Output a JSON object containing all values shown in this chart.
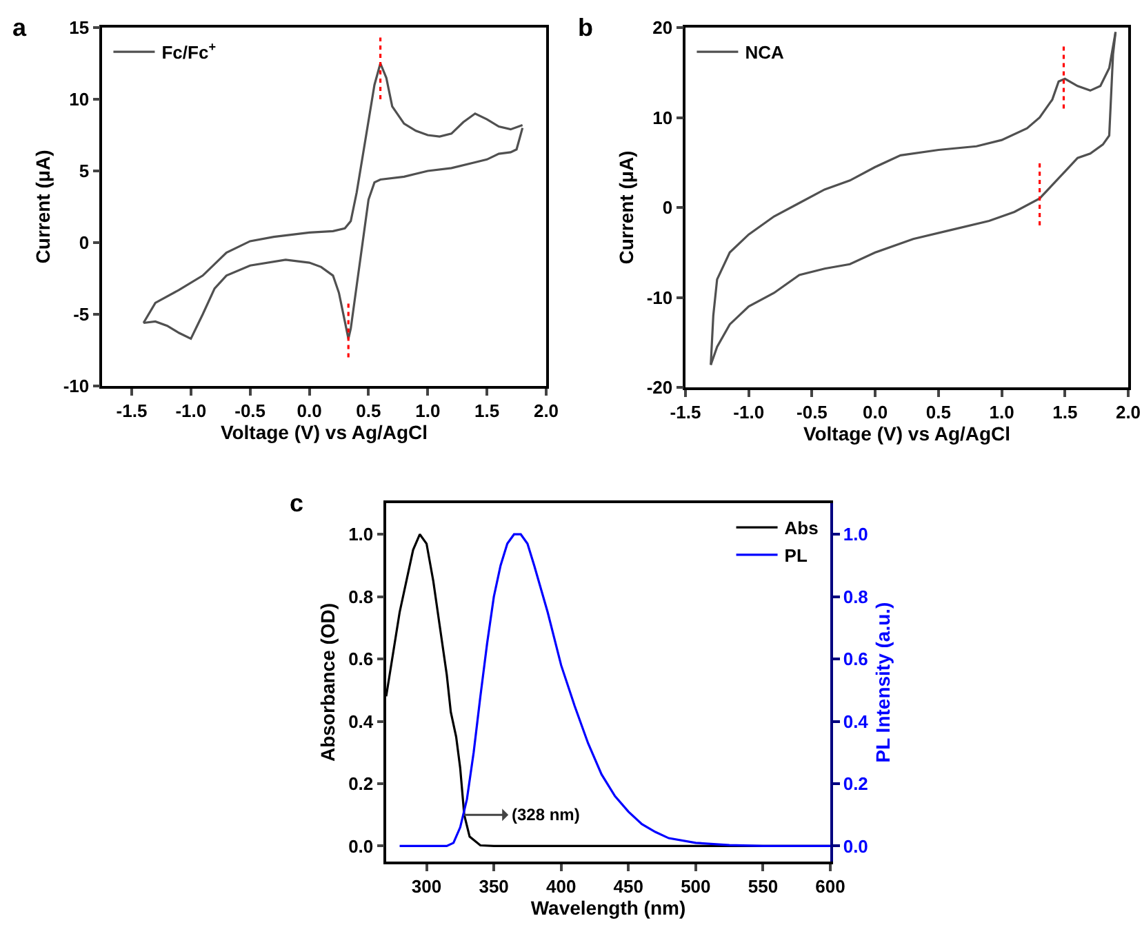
{
  "chart_data": [
    {
      "type": "line",
      "xlabel": "Voltage (V) vs Ag/AgCl",
      "ylabel": "Current (μA)",
      "annotations": [
        "a"
      ],
      "legend": "top left",
      "grid": false,
      "marker": "none",
      "xlim": [
        -1.75,
        2.0
      ],
      "ylim": [
        -10,
        15
      ],
      "xticks": [
        -1.5,
        {
          "value": -1,
          "label": "-1.0"
        },
        -0.5,
        {
          "value": 0,
          "label": "0.0"
        },
        0.5,
        {
          "value": 1,
          "label": "1.0"
        },
        1.5,
        {
          "value": 2,
          "label": "2.0"
        }
      ],
      "yticks": [
        -10,
        -5,
        0,
        5,
        10,
        15
      ],
      "series": [
        {
          "name": "Fc/Fc$^{+}$",
          "color": "#505050",
          "line_style": "solid",
          "x": [
            -1.4,
            -1.3,
            -1.1,
            -0.9,
            -0.7,
            -0.5,
            -0.3,
            0,
            0.2,
            0.3,
            0.35,
            0.4,
            0.45,
            0.5,
            0.55,
            0.6,
            0.65,
            0.7,
            0.8,
            0.9,
            1.0,
            1.1,
            1.2,
            1.3,
            1.4,
            1.5,
            1.6,
            1.7,
            1.8
          ],
          "values": [
            -5.6,
            -4.2,
            -3.3,
            -2.3,
            -0.7,
            0.1,
            0.4,
            0.7,
            0.8,
            1.0,
            1.5,
            3.5,
            6,
            8.5,
            11,
            12.5,
            11.5,
            9.5,
            8.3,
            7.8,
            7.5,
            7.4,
            7.6,
            8.4,
            9.0,
            8.6,
            8.1,
            7.9,
            8.2
          ]
        },
        {
          "color": "#505050",
          "line_style": "solid",
          "x": [
            1.8,
            1.75,
            1.7,
            1.6,
            1.5,
            1.4,
            1.2,
            1.0,
            0.8,
            0.6,
            0.55,
            0.5,
            0.45,
            0.4,
            0.35,
            0.33,
            0.3,
            0.25,
            0.2,
            0.1,
            0,
            -0.2,
            -0.5,
            -0.7,
            -0.8,
            -0.9,
            -1.0,
            -1.1,
            -1.2,
            -1.3,
            -1.4
          ],
          "values": [
            8.0,
            6.5,
            6.3,
            6.2,
            5.8,
            5.6,
            5.2,
            5.0,
            4.6,
            4.4,
            4.2,
            3,
            0,
            -3,
            -6,
            -6.7,
            -5.5,
            -3.5,
            -2.3,
            -1.7,
            -1.4,
            -1.2,
            -1.6,
            -2.3,
            -3.2,
            -5,
            -6.7,
            -6.3,
            -5.8,
            -5.5,
            -5.6
          ]
        },
        {
          "color": "#ff0000",
          "line_style": "dotted",
          "x": [
            0.6,
            0.6
          ],
          "values": [
            10,
            14.3
          ]
        },
        {
          "color": "#ff0000",
          "line_style": "dotted",
          "x": [
            0.33,
            0.33
          ],
          "values": [
            -8,
            -4
          ]
        }
      ]
    },
    {
      "type": "line",
      "xlabel": "Voltage (V) vs Ag/AgCl",
      "ylabel": "Current (μA)",
      "annotations": [
        "b"
      ],
      "legend": "top left",
      "grid": false,
      "marker": "none",
      "xlim": [
        -1.5,
        2.0
      ],
      "ylim": [
        -20,
        20
      ],
      "xticks": [
        -1.5,
        {
          "value": -1,
          "label": "-1.0"
        },
        -0.5,
        {
          "value": 0,
          "label": "0.0"
        },
        0.5,
        {
          "value": 1,
          "label": "1.0"
        },
        1.5,
        {
          "value": 2,
          "label": "2.0"
        }
      ],
      "yticks": [
        -20,
        -10,
        0,
        10,
        20
      ],
      "series": [
        {
          "name": "NCA",
          "color": "#505050",
          "line_style": "solid",
          "x": [
            -1.3,
            -1.28,
            -1.25,
            -1.15,
            -1.0,
            -0.8,
            -0.6,
            -0.4,
            -0.2,
            0,
            0.2,
            0.5,
            0.8,
            1.0,
            1.2,
            1.3,
            1.4,
            1.45,
            1.5,
            1.6,
            1.7,
            1.78,
            1.85,
            1.9
          ],
          "values": [
            -17.5,
            -12,
            -8,
            -5,
            -3,
            -1,
            0.5,
            2,
            3,
            4.5,
            5.8,
            6.4,
            6.8,
            7.5,
            8.8,
            10,
            12,
            14,
            14.3,
            13.5,
            13,
            13.5,
            15.5,
            19.5
          ]
        },
        {
          "color": "#505050",
          "line_style": "solid",
          "x": [
            1.9,
            1.88,
            1.85,
            1.8,
            1.7,
            1.6,
            1.5,
            1.4,
            1.3,
            1.1,
            0.9,
            0.6,
            0.3,
            0,
            -0.2,
            -0.4,
            -0.6,
            -0.8,
            -1.0,
            -1.15,
            -1.25,
            -1.3
          ],
          "values": [
            19.5,
            17,
            8,
            7,
            6,
            5.5,
            4,
            2.5,
            1,
            -0.5,
            -1.5,
            -2.5,
            -3.5,
            -5,
            -6.3,
            -6.8,
            -7.5,
            -9.5,
            -11,
            -13,
            -15.5,
            -17.5
          ]
        },
        {
          "color": "#ff0000",
          "line_style": "dotted",
          "x": [
            1.49,
            1.49
          ],
          "values": [
            11,
            18
          ]
        },
        {
          "color": "#ff0000",
          "line_style": "dotted",
          "x": [
            1.3,
            1.3
          ],
          "values": [
            -2,
            5
          ]
        }
      ]
    },
    {
      "type": "line",
      "xlabel": "Wavelength (nm)",
      "ylabel": "Absorbance (OD)",
      "y2label": "PL Intensity (a.u.)",
      "legend": "top right",
      "grid": false,
      "marker": "none",
      "annotations": [
        "c",
        {
          "text": "(328 nm)",
          "x": 328,
          "y": 0.1
        }
      ],
      "xlim": [
        270,
        600
      ],
      "ylim": [
        -0.05,
        1.1
      ],
      "y2lim": [
        -0.05,
        1.1
      ],
      "xticks": [
        300,
        350,
        400,
        450,
        500,
        550,
        600
      ],
      "yticks": [
        {
          "value": 0,
          "label": "0.0"
        },
        0.2,
        0.4,
        0.6,
        0.8,
        {
          "value": 1,
          "label": "1.0"
        }
      ],
      "y2ticks": [
        {
          "value": 0,
          "label": "0.0"
        },
        0.2,
        0.4,
        0.6,
        0.8,
        {
          "value": 1,
          "label": "1.0"
        }
      ],
      "series": [
        {
          "name": "Abs",
          "color": "#000000",
          "line_style": "solid",
          "x": [
            270,
            280,
            290,
            295,
            300,
            305,
            310,
            315,
            318,
            322,
            325,
            328,
            332,
            340,
            350,
            400,
            500,
            600
          ],
          "values": [
            0.48,
            0.75,
            0.95,
            1.0,
            0.97,
            0.85,
            0.7,
            0.55,
            0.43,
            0.35,
            0.25,
            0.1,
            0.03,
            0.002,
            0,
            0,
            0,
            0
          ]
        },
        {
          "name": "PL",
          "color": "#0000ff",
          "line_style": "solid",
          "axis": "y2",
          "x": [
            280,
            315,
            320,
            325,
            330,
            335,
            340,
            345,
            350,
            355,
            360,
            365,
            370,
            375,
            380,
            390,
            400,
            410,
            420,
            430,
            440,
            450,
            460,
            470,
            480,
            500,
            525,
            550,
            600
          ],
          "values": [
            0,
            0,
            0.01,
            0.06,
            0.15,
            0.3,
            0.48,
            0.65,
            0.8,
            0.9,
            0.97,
            1.0,
            1.0,
            0.97,
            0.9,
            0.75,
            0.58,
            0.45,
            0.33,
            0.23,
            0.16,
            0.11,
            0.07,
            0.045,
            0.025,
            0.01,
            0.003,
            0,
            0
          ]
        }
      ]
    }
  ]
}
